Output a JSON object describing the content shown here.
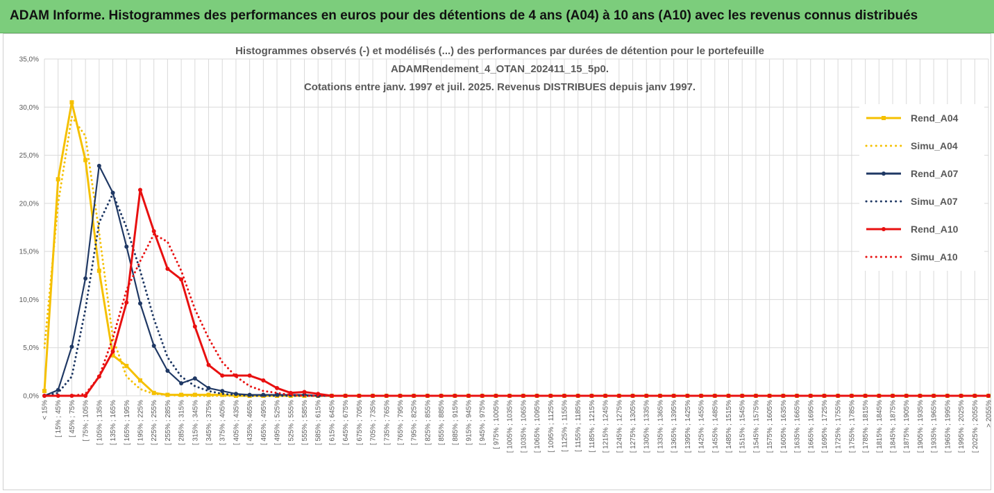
{
  "banner": {
    "title": "ADAM Informe. Histogrammes des performances en euros pour des détentions de 4 ans (A04) à 10 ans (A10) avec les revenus connus distribués"
  },
  "colors": {
    "banner_bg": "#7ccd7c",
    "accent": "#f6c000",
    "A04": "#f5c000",
    "A07": "#1f3864",
    "A10": "#e81010",
    "grid": "#d9d9d9",
    "text": "#595959"
  },
  "chart_data": {
    "type": "line",
    "title_lines": [
      "Histogrammes observés (-) et modélisés (...) des performances par durées de détention pour le portefeuille",
      "ADAMRendement_4_OTAN_202411_15_5p0.",
      "Cotations entre janv. 1997 et juil. 2025. Revenus DISTRIBUES depuis janv 1997."
    ],
    "ylim": [
      0,
      35
    ],
    "y_ticks": [
      "0,0%",
      "5,0%",
      "10,0%",
      "15,0%",
      "20,0%",
      "25,0%",
      "30,0%",
      "35,0%"
    ],
    "grid": true,
    "legend_position": "right",
    "categories": [
      "< 15%",
      "[ 15% ; 45%",
      "[ 45% ; 75%",
      "[ 75% ; 105%",
      "[ 105% ; 135%",
      "[ 135% ; 165%",
      "[ 165% ; 195%",
      "[ 195% ; 225%",
      "[ 225% ; 255%",
      "[ 255% ; 285%",
      "[ 285% ; 315%",
      "[ 315% ; 345%",
      "[ 345% ; 375%",
      "[ 375% ; 405%",
      "[ 405% ; 435%",
      "[ 435% ; 465%",
      "[ 465% ; 495%",
      "[ 495% ; 525%",
      "[ 525% ; 555%",
      "[ 555% ; 585%",
      "[ 585% ; 615%",
      "[ 615% ; 645%",
      "[ 645% ; 675%",
      "[ 675% ; 705%",
      "[ 705% ; 735%",
      "[ 735% ; 765%",
      "[ 765% ; 795%",
      "[ 795% ; 825%",
      "[ 825% ; 855%",
      "[ 855% ; 885%",
      "[ 885% ; 915%",
      "[ 915% ; 945%",
      "[ 945% ; 975%",
      "[ 975% ; 1005%",
      "[ 1005% ; 1035%",
      "[ 1035% ; 1065%",
      "[ 1065% ; 1095%",
      "[ 1095% ; 1125%",
      "[ 1125% ; 1155%",
      "[ 1155% ; 1185%",
      "[ 1185% ; 1215%",
      "[ 1215% ; 1245%",
      "[ 1245% ; 1275%",
      "[ 1275% ; 1305%",
      "[ 1305% ; 1335%",
      "[ 1335% ; 1365%",
      "[ 1365% ; 1395%",
      "[ 1395% ; 1425%",
      "[ 1425% ; 1455%",
      "[ 1455% ; 1485%",
      "[ 1485% ; 1515%",
      "[ 1515% ; 1545%",
      "[ 1545% ; 1575%",
      "[ 1575% ; 1605%",
      "[ 1605% ; 1635%",
      "[ 1635% ; 1665%",
      "[ 1665% ; 1695%",
      "[ 1695% ; 1725%",
      "[ 1725% ; 1755%",
      "[ 1755% ; 1785%",
      "[ 1785% ; 1815%",
      "[ 1815% ; 1845%",
      "[ 1845% ; 1875%",
      "[ 1875% ; 1905%",
      "[ 1905% ; 1935%",
      "[ 1935% ; 1965%",
      "[ 1965% ; 1995%",
      "[ 1995% ; 2025%",
      "[ 2025% ; 2055%",
      "> 2055%"
    ],
    "series": [
      {
        "name": "Rend_A04",
        "style": "solid",
        "marker": "square",
        "color": "#f5c000",
        "values": [
          0.5,
          22.5,
          30.5,
          24.5,
          13.0,
          4.2,
          3.1,
          1.6,
          0.3,
          0.1,
          0.1,
          0.1,
          0.1,
          0.1,
          0,
          0,
          0,
          0,
          0,
          0,
          0,
          0,
          0,
          0,
          0,
          0,
          0,
          0,
          0,
          0,
          0,
          0,
          0,
          0,
          0,
          0,
          0,
          0,
          0,
          0,
          0,
          0,
          0,
          0,
          0,
          0,
          0,
          0,
          0,
          0,
          0,
          0,
          0,
          0,
          0,
          0,
          0,
          0,
          0,
          0,
          0,
          0,
          0,
          0,
          0,
          0,
          0,
          0,
          0,
          0
        ]
      },
      {
        "name": "Simu_A04",
        "style": "dotted",
        "marker": "none",
        "color": "#f5c000",
        "values": [
          5.0,
          20.0,
          29.0,
          27.0,
          17.0,
          6.0,
          2.0,
          0.7,
          0.2,
          0.1,
          0,
          0,
          0,
          0,
          0,
          0,
          0,
          0,
          0,
          0,
          0,
          0,
          0,
          0,
          0,
          0,
          0,
          0,
          0,
          0,
          0,
          0,
          0,
          0,
          0,
          0,
          0,
          0,
          0,
          0,
          0,
          0,
          0,
          0,
          0,
          0,
          0,
          0,
          0,
          0,
          0,
          0,
          0,
          0,
          0,
          0,
          0,
          0,
          0,
          0,
          0,
          0,
          0,
          0,
          0,
          0,
          0,
          0,
          0,
          0
        ]
      },
      {
        "name": "Rend_A07",
        "style": "solid",
        "marker": "circle",
        "color": "#1f3864",
        "values": [
          0,
          0.6,
          5.1,
          12.2,
          23.9,
          21.1,
          15.5,
          9.6,
          5.2,
          2.6,
          1.3,
          1.8,
          0.8,
          0.5,
          0.2,
          0.1,
          0.1,
          0.1,
          0.1,
          0.1,
          0,
          0,
          0,
          0,
          0,
          0,
          0,
          0,
          0,
          0,
          0,
          0,
          0,
          0,
          0,
          0,
          0,
          0,
          0,
          0,
          0,
          0,
          0,
          0,
          0,
          0,
          0,
          0,
          0,
          0,
          0,
          0,
          0,
          0,
          0,
          0,
          0,
          0,
          0,
          0,
          0,
          0,
          0,
          0,
          0,
          0,
          0,
          0,
          0,
          0
        ]
      },
      {
        "name": "Simu_A07",
        "style": "dotted",
        "marker": "none",
        "color": "#1f3864",
        "values": [
          0,
          0.3,
          2.0,
          9.0,
          18.0,
          21.0,
          17.5,
          13.0,
          8.0,
          4.0,
          2.0,
          1.0,
          0.5,
          0.2,
          0.1,
          0,
          0,
          0,
          0,
          0,
          0,
          0,
          0,
          0,
          0,
          0,
          0,
          0,
          0,
          0,
          0,
          0,
          0,
          0,
          0,
          0,
          0,
          0,
          0,
          0,
          0,
          0,
          0,
          0,
          0,
          0,
          0,
          0,
          0,
          0,
          0,
          0,
          0,
          0,
          0,
          0,
          0,
          0,
          0,
          0,
          0,
          0,
          0,
          0,
          0,
          0,
          0,
          0,
          0,
          0
        ]
      },
      {
        "name": "Rend_A10",
        "style": "solid",
        "marker": "circle",
        "color": "#e81010",
        "values": [
          0,
          0,
          0,
          0,
          2.0,
          4.6,
          9.7,
          21.4,
          17.1,
          13.2,
          12.1,
          7.2,
          3.2,
          2.1,
          2.1,
          2.1,
          1.6,
          0.8,
          0.3,
          0.4,
          0.2,
          0,
          0,
          0,
          0,
          0,
          0,
          0,
          0,
          0,
          0,
          0,
          0,
          0,
          0,
          0,
          0,
          0,
          0,
          0,
          0,
          0,
          0,
          0,
          0,
          0,
          0,
          0,
          0,
          0,
          0,
          0,
          0,
          0,
          0,
          0,
          0,
          0,
          0,
          0,
          0,
          0,
          0,
          0,
          0,
          0,
          0,
          0,
          0,
          0
        ]
      },
      {
        "name": "Simu_A10",
        "style": "dotted",
        "marker": "none",
        "color": "#e81010",
        "values": [
          0,
          0,
          0,
          0.2,
          2.0,
          6.0,
          11.0,
          14.0,
          16.8,
          16.0,
          13.0,
          9.0,
          6.0,
          3.5,
          2.0,
          1.0,
          0.5,
          0.3,
          0.1,
          0,
          0,
          0,
          0,
          0,
          0,
          0,
          0,
          0,
          0,
          0,
          0,
          0,
          0,
          0,
          0,
          0,
          0,
          0,
          0,
          0,
          0,
          0,
          0,
          0,
          0,
          0,
          0,
          0,
          0,
          0,
          0,
          0,
          0,
          0,
          0,
          0,
          0,
          0,
          0,
          0,
          0,
          0,
          0,
          0,
          0,
          0,
          0,
          0,
          0,
          0
        ]
      }
    ]
  }
}
